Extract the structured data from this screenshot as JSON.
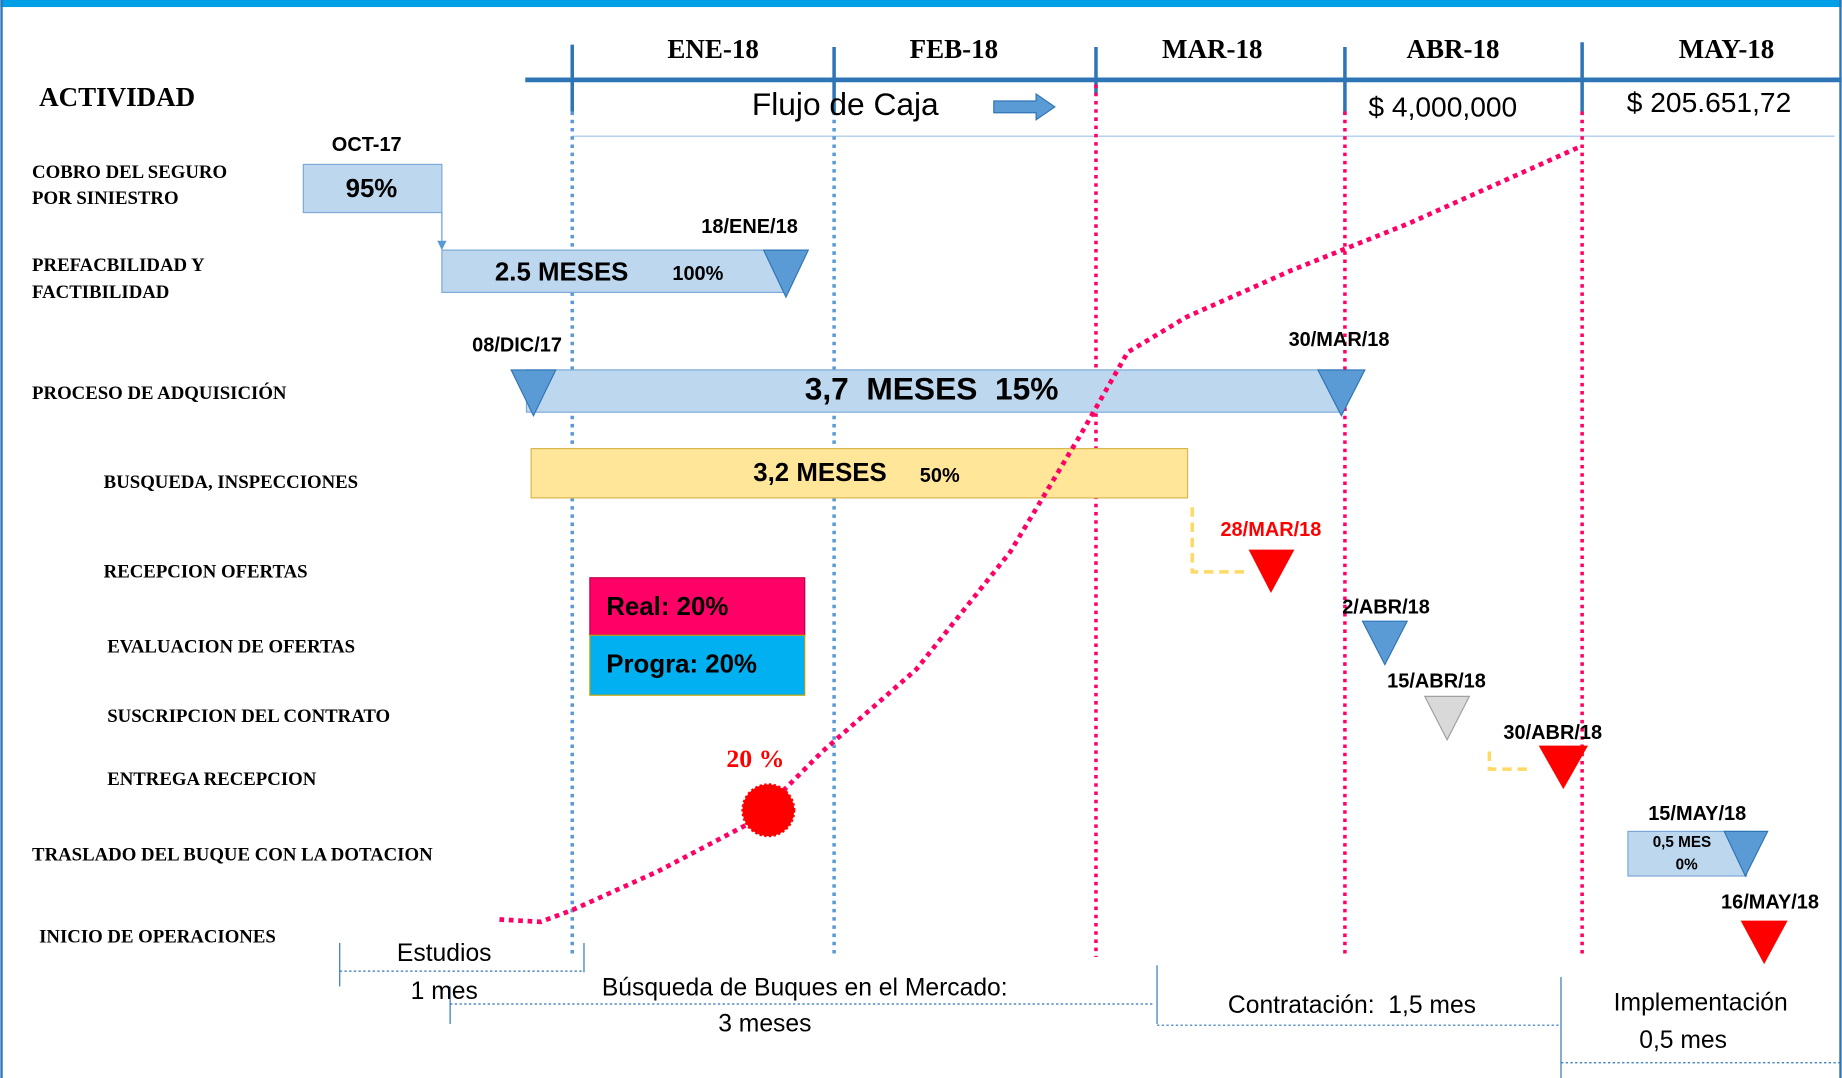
{
  "header": {
    "activity_label": "ACTIVIDAD",
    "months": [
      "ENE-18",
      "FEB-18",
      "MAR-18",
      "ABR-18",
      "MAY-18"
    ],
    "cash_flow": "Flujo de Caja",
    "amounts": [
      "$ 4,000,000",
      "$ 205.651,72"
    ]
  },
  "activities": [
    [
      "COBRO DEL SEGURO",
      "POR SINIESTRO"
    ],
    [
      "PREFACBILIDAD Y",
      "FACTIBILIDAD"
    ],
    [
      "PROCESO DE ADQUISICIÓN"
    ],
    [
      "BUSQUEDA, INSPECCIONES"
    ],
    [
      "RECEPCION OFERTAS"
    ],
    [
      "EVALUACION DE OFERTAS"
    ],
    [
      "SUSCRIPCION DEL CONTRATO"
    ],
    [
      "ENTREGA RECEPCION"
    ],
    [
      "TRASLADO DEL BUQUE CON LA DOTACION"
    ],
    [
      "INICIO DE OPERACIONES"
    ]
  ],
  "tasks": [
    {
      "date": "OCT-17",
      "label": "95%"
    },
    {
      "date": "18/ENE/18",
      "duration": "2.5 MESES",
      "progress": "100%"
    },
    {
      "start": "08/DIC/17",
      "end": "30/MAR/18",
      "label": "3,7  MESES  15%"
    },
    {
      "duration": "3,2 MESES",
      "progress": "50%"
    },
    {
      "date": "15/MAY/18",
      "duration": "0,5 MES",
      "progress": "0%"
    }
  ],
  "milestones": [
    "28/MAR/18",
    "2/ABR/18",
    "15/ABR/18",
    "30/ABR/18",
    "16/MAY/18"
  ],
  "legend": {
    "real": "Real: 20%",
    "programmed": "Progra: 20%"
  },
  "curve_label": "20 %",
  "phases": [
    {
      "name": "Estudios",
      "duration": "1 mes"
    },
    {
      "name": "Búsqueda de Buques en el Mercado:",
      "duration": "3 meses"
    },
    {
      "name": "Contratación:  1,5 mes"
    },
    {
      "name": "Implementación",
      "duration": "0,5 mes"
    }
  ]
}
